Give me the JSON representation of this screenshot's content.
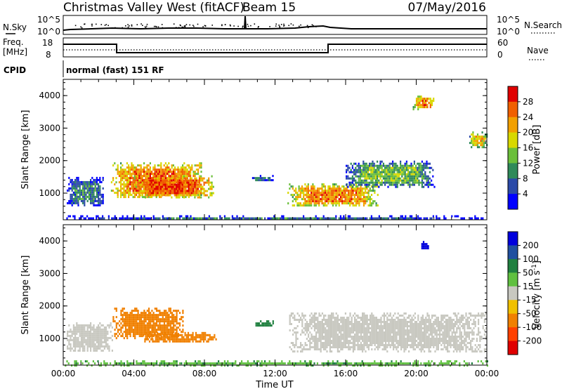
{
  "header": {
    "station": "Christmas Valley West (fitACF)",
    "beam": "Beam 15",
    "date": "07/May/2016"
  },
  "top_panels": {
    "nsky_label": "N.Sky",
    "nsky_ticks_left": [
      "10^5",
      "10^0"
    ],
    "nsearch_label": "N.Search",
    "nsearch_ticks_right": [
      "10^5",
      "10^0"
    ],
    "freq_label": "Freq.",
    "freq_unit": "[MHz]",
    "freq_ticks": [
      "18",
      "8"
    ],
    "nave_label": "Nave",
    "nave_ticks": [
      "60",
      "0"
    ],
    "cpid_label": "CPID",
    "cpid_text": "normal (fast) 151 RF"
  },
  "colors": {
    "power_scale": [
      "#0000ff",
      "#2b4aa8",
      "#2f8a5a",
      "#6bbf3a",
      "#d8d800",
      "#f2a000",
      "#f06000",
      "#e00000"
    ],
    "velocity_scale": [
      "#0000dd",
      "#2050a0",
      "#208040",
      "#60c040",
      "#c8c8c0",
      "#f0c000",
      "#f08000",
      "#ff4000",
      "#e00000"
    ],
    "ground_scatter": "#c8c8c0"
  },
  "chart_data": [
    {
      "type": "heatmap",
      "name": "power-panel",
      "ylabel": "Slant Range [km]",
      "xlabel": "",
      "x_ticks": [],
      "y_ticks": [
        "1000",
        "2000",
        "3000",
        "4000"
      ],
      "ylim": [
        180,
        4500
      ],
      "xlim_hours": [
        0,
        24
      ],
      "colorbar_label": "Power [dB]",
      "colorbar_ticks": [
        "4",
        "8",
        "12",
        "16",
        "20",
        "24",
        "28"
      ],
      "colorbar_range": [
        0,
        32
      ],
      "regions": [
        {
          "t": [
            0.2,
            2.3
          ],
          "r": [
            620,
            1500
          ],
          "power": 10
        },
        {
          "t": [
            2.7,
            7.8
          ],
          "r": [
            850,
            1950
          ],
          "power": 26
        },
        {
          "t": [
            4.0,
            8.5
          ],
          "r": [
            900,
            1550
          ],
          "power": 27
        },
        {
          "t": [
            10.7,
            11.9
          ],
          "r": [
            1400,
            1560
          ],
          "power": 10
        },
        {
          "t": [
            12.7,
            17.8
          ],
          "r": [
            600,
            1300
          ],
          "power": 24
        },
        {
          "t": [
            16.0,
            21.0
          ],
          "r": [
            1200,
            2000
          ],
          "power": 14
        },
        {
          "t": [
            19.8,
            21.0
          ],
          "r": [
            3600,
            4000
          ],
          "power": 24
        },
        {
          "t": [
            23.0,
            24.0
          ],
          "r": [
            2400,
            2900
          ],
          "power": 20
        },
        {
          "t": [
            0.0,
            24.0
          ],
          "r": [
            200,
            320
          ],
          "power": 8
        }
      ]
    },
    {
      "type": "heatmap",
      "name": "velocity-panel",
      "ylabel": "Slant Range [km]",
      "xlabel": "Time UT",
      "x_ticks": [
        "00:00",
        "04:00",
        "08:00",
        "12:00",
        "16:00",
        "20:00",
        "00:00"
      ],
      "y_ticks": [
        "1000",
        "2000",
        "3000",
        "4000"
      ],
      "ylim": [
        180,
        4500
      ],
      "xlim_hours": [
        0,
        24
      ],
      "colorbar_label": "Velocity [m s^-1]",
      "colorbar_ticks": [
        "200",
        "100",
        "50",
        "15",
        "-15",
        "-50",
        "-100",
        "-200"
      ],
      "colorbar_range": [
        -250,
        250
      ],
      "regions": [
        {
          "t": [
            0.2,
            2.8
          ],
          "r": [
            600,
            1500
          ],
          "velocity": 0
        },
        {
          "t": [
            2.8,
            6.8
          ],
          "r": [
            1000,
            1950
          ],
          "velocity": -50
        },
        {
          "t": [
            4.5,
            8.7
          ],
          "r": [
            900,
            1200
          ],
          "velocity": -50
        },
        {
          "t": [
            10.8,
            11.9
          ],
          "r": [
            1400,
            1560
          ],
          "velocity": 60
        },
        {
          "t": [
            12.8,
            24.0
          ],
          "r": [
            600,
            1800
          ],
          "velocity": 0
        },
        {
          "t": [
            20.2,
            20.7
          ],
          "r": [
            3750,
            4000
          ],
          "velocity": 200
        },
        {
          "t": [
            0.0,
            24.0
          ],
          "r": [
            200,
            330
          ],
          "velocity": 25
        }
      ]
    }
  ]
}
